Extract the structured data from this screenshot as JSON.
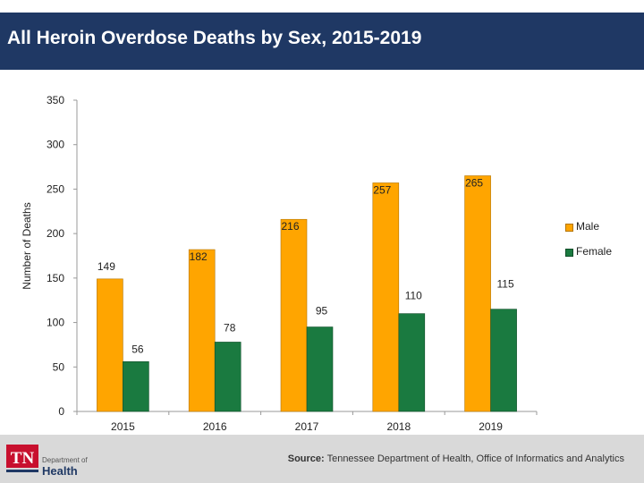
{
  "header": {
    "title": "All Heroin Overdose Deaths by Sex, 2015-2019"
  },
  "chart_data": {
    "type": "bar",
    "title": "All Heroin Overdose Deaths by Sex, 2015-2019",
    "xlabel": "",
    "ylabel": "Number of Deaths",
    "categories": [
      "2015",
      "2016",
      "2017",
      "2018",
      "2019"
    ],
    "series": [
      {
        "name": "Male",
        "color": "#ffa500",
        "values": [
          149,
          182,
          216,
          257,
          265
        ]
      },
      {
        "name": "Female",
        "color": "#1a7a40",
        "values": [
          56,
          78,
          95,
          110,
          115
        ]
      }
    ],
    "ylim": [
      0,
      350
    ],
    "yticks": [
      0,
      50,
      100,
      150,
      200,
      250,
      300,
      350
    ],
    "grid": false,
    "legend": "right"
  },
  "footer": {
    "logo_abbrev": "TN",
    "logo_line1": "Department of",
    "logo_line2": "Health",
    "source_label": "Source:",
    "source_text": "Tennessee Department of Health, Office of Informatics and Analytics"
  }
}
